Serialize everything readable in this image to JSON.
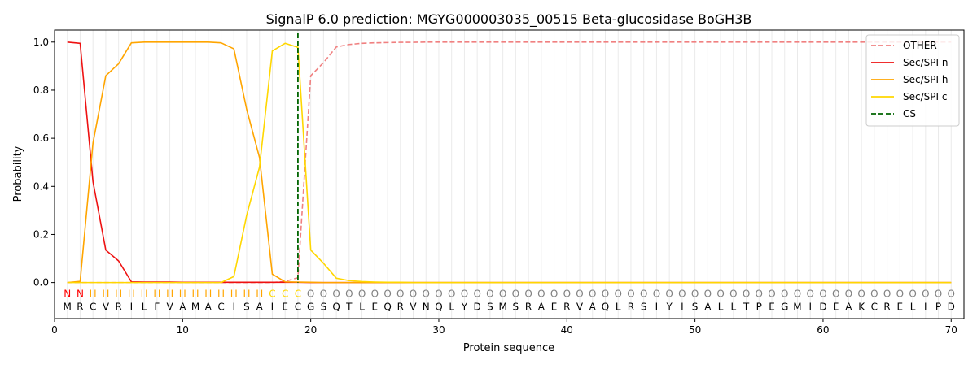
{
  "chart_data": {
    "type": "line",
    "title": "SignalP 6.0 prediction: MGYG000003035_00515 Beta-glucosidase BoGH3B",
    "xlabel": "Protein sequence",
    "ylabel": "Probability",
    "xlim": [
      0,
      71
    ],
    "ylim": [
      -0.15,
      1.05
    ],
    "x_ticks": [
      0,
      10,
      20,
      30,
      40,
      50,
      60,
      70
    ],
    "y_ticks": [
      0.0,
      0.2,
      0.4,
      0.6,
      0.8,
      1.0
    ],
    "x_tick_labels": [
      "0",
      "10",
      "20",
      "30",
      "40",
      "50",
      "60",
      "70"
    ],
    "y_tick_labels": [
      "0.0",
      "0.2",
      "0.4",
      "0.6",
      "0.8",
      "1.0"
    ],
    "grid": "vertical lines at each residue position",
    "legend_position": "top-right",
    "sequence": [
      "M",
      "R",
      "C",
      "V",
      "R",
      "I",
      "L",
      "F",
      "V",
      "A",
      "M",
      "A",
      "C",
      "I",
      "S",
      "A",
      "I",
      "E",
      "C",
      "G",
      "S",
      "Q",
      "T",
      "L",
      "E",
      "Q",
      "R",
      "V",
      "N",
      "Q",
      "L",
      "Y",
      "D",
      "S",
      "M",
      "S",
      "R",
      "A",
      "E",
      "R",
      "V",
      "A",
      "Q",
      "L",
      "R",
      "S",
      "I",
      "Y",
      "I",
      "S",
      "A",
      "L",
      "L",
      "T",
      "P",
      "E",
      "G",
      "M",
      "I",
      "D",
      "E",
      "A",
      "K",
      "C",
      "R",
      "E",
      "L",
      "I",
      "P",
      "D"
    ],
    "labels": [
      "N",
      "N",
      "H",
      "H",
      "H",
      "H",
      "H",
      "H",
      "H",
      "H",
      "H",
      "H",
      "H",
      "H",
      "H",
      "H",
      "C",
      "C",
      "C",
      "O",
      "O",
      "O",
      "O",
      "O",
      "O",
      "O",
      "O",
      "O",
      "O",
      "O",
      "O",
      "O",
      "O",
      "O",
      "O",
      "O",
      "O",
      "O",
      "O",
      "O",
      "O",
      "O",
      "O",
      "O",
      "O",
      "O",
      "O",
      "O",
      "O",
      "O",
      "O",
      "O",
      "O",
      "O",
      "O",
      "O",
      "O",
      "O",
      "O",
      "O",
      "O",
      "O",
      "O",
      "O",
      "O",
      "O",
      "O",
      "O",
      "O",
      "O"
    ],
    "label_colors": {
      "N": "#ff0000",
      "H": "#ffa500",
      "C": "#ffd700",
      "O": "#808080"
    },
    "cleavage_site": 19,
    "series": [
      {
        "name": "OTHER",
        "color": "#f08080",
        "style": "dashed",
        "x": [
          1,
          2,
          3,
          4,
          5,
          6,
          7,
          8,
          9,
          10,
          11,
          12,
          13,
          14,
          15,
          16,
          17,
          18,
          19,
          20,
          21,
          22,
          23,
          24,
          25,
          26,
          27,
          28,
          29,
          30,
          31,
          32,
          33,
          34,
          35,
          36,
          37,
          38,
          39,
          40,
          41,
          42,
          43,
          44,
          45,
          46,
          47,
          48,
          49,
          50,
          51,
          52,
          53,
          54,
          55,
          56,
          57,
          58,
          59,
          60,
          61,
          62,
          63,
          64,
          65,
          66,
          67,
          68,
          69,
          70
        ],
        "values": [
          0,
          0,
          0,
          0,
          0,
          0,
          0,
          0,
          0,
          0,
          0,
          0,
          0,
          0,
          0,
          0,
          0,
          0.005,
          0.02,
          0.86,
          0.915,
          0.98,
          0.99,
          0.995,
          0.997,
          0.998,
          0.999,
          0.999,
          1,
          1,
          1,
          1,
          1,
          1,
          1,
          1,
          1,
          1,
          1,
          1,
          1,
          1,
          1,
          1,
          1,
          1,
          1,
          1,
          1,
          1,
          1,
          1,
          1,
          1,
          1,
          1,
          1,
          1,
          1,
          1,
          1,
          1,
          1,
          1,
          1,
          1,
          1,
          1,
          1,
          1
        ]
      },
      {
        "name": "Sec/SPI n",
        "color": "#ee1111",
        "style": "solid",
        "x": [
          1,
          2,
          3,
          4,
          5,
          6,
          7,
          8,
          9,
          10,
          11,
          12,
          13,
          14,
          15,
          16,
          17,
          18,
          19,
          20,
          21,
          22,
          23,
          24,
          25,
          26,
          27,
          28,
          29,
          30,
          31,
          32,
          33,
          34,
          35,
          36,
          37,
          38,
          39,
          40,
          41,
          42,
          43,
          44,
          45,
          46,
          47,
          48,
          49,
          50,
          51,
          52,
          53,
          54,
          55,
          56,
          57,
          58,
          59,
          60,
          61,
          62,
          63,
          64,
          65,
          66,
          67,
          68,
          69,
          70
        ],
        "values": [
          1.0,
          0.995,
          0.42,
          0.135,
          0.09,
          0.003,
          0.002,
          0.002,
          0.002,
          0.001,
          0.001,
          0.001,
          0.001,
          0.001,
          0.001,
          0.001,
          0.001,
          0.001,
          0.001,
          0,
          0,
          0,
          0,
          0,
          0,
          0,
          0,
          0,
          0,
          0,
          0,
          0,
          0,
          0,
          0,
          0,
          0,
          0,
          0,
          0,
          0,
          0,
          0,
          0,
          0,
          0,
          0,
          0,
          0,
          0,
          0,
          0,
          0,
          0,
          0,
          0,
          0,
          0,
          0,
          0,
          0,
          0,
          0,
          0,
          0,
          0,
          0,
          0,
          0,
          0
        ]
      },
      {
        "name": "Sec/SPI h",
        "color": "#ffa500",
        "style": "solid",
        "x": [
          1,
          2,
          3,
          4,
          5,
          6,
          7,
          8,
          9,
          10,
          11,
          12,
          13,
          14,
          15,
          16,
          17,
          18,
          19,
          20,
          21,
          22,
          23,
          24,
          25,
          26,
          27,
          28,
          29,
          30,
          31,
          32,
          33,
          34,
          35,
          36,
          37,
          38,
          39,
          40,
          41,
          42,
          43,
          44,
          45,
          46,
          47,
          48,
          49,
          50,
          51,
          52,
          53,
          54,
          55,
          56,
          57,
          58,
          59,
          60,
          61,
          62,
          63,
          64,
          65,
          66,
          67,
          68,
          69,
          70
        ],
        "values": [
          0,
          0.005,
          0.58,
          0.86,
          0.91,
          0.997,
          1.0,
          1.0,
          1.0,
          1.0,
          1.0,
          1.0,
          0.997,
          0.972,
          0.72,
          0.52,
          0.035,
          0.003,
          0.002,
          0.001,
          0,
          0,
          0,
          0,
          0,
          0,
          0,
          0,
          0,
          0,
          0,
          0,
          0,
          0,
          0,
          0,
          0,
          0,
          0,
          0,
          0,
          0,
          0,
          0,
          0,
          0,
          0,
          0,
          0,
          0,
          0,
          0,
          0,
          0,
          0,
          0,
          0,
          0,
          0,
          0,
          0,
          0,
          0,
          0,
          0,
          0,
          0,
          0,
          0,
          0
        ]
      },
      {
        "name": "Sec/SPI c",
        "color": "#ffd700",
        "style": "solid",
        "x": [
          1,
          2,
          3,
          4,
          5,
          6,
          7,
          8,
          9,
          10,
          11,
          12,
          13,
          14,
          15,
          16,
          17,
          18,
          19,
          20,
          21,
          22,
          23,
          24,
          25,
          26,
          27,
          28,
          29,
          30,
          31,
          32,
          33,
          34,
          35,
          36,
          37,
          38,
          39,
          40,
          41,
          42,
          43,
          44,
          45,
          46,
          47,
          48,
          49,
          50,
          51,
          52,
          53,
          54,
          55,
          56,
          57,
          58,
          59,
          60,
          61,
          62,
          63,
          64,
          65,
          66,
          67,
          68,
          69,
          70
        ],
        "values": [
          0,
          0,
          0,
          0,
          0,
          0,
          0,
          0,
          0,
          0,
          0,
          0,
          0,
          0.025,
          0.28,
          0.48,
          0.963,
          0.995,
          0.978,
          0.135,
          0.08,
          0.018,
          0.008,
          0.004,
          0.002,
          0.001,
          0.001,
          0,
          0,
          0,
          0,
          0,
          0,
          0,
          0,
          0,
          0,
          0,
          0,
          0,
          0,
          0,
          0,
          0,
          0,
          0,
          0,
          0,
          0,
          0,
          0,
          0,
          0,
          0,
          0,
          0,
          0,
          0,
          0,
          0,
          0,
          0,
          0,
          0,
          0,
          0,
          0,
          0,
          0,
          0
        ]
      }
    ],
    "legend": [
      {
        "name": "OTHER",
        "color": "#f08080",
        "style": "dashed"
      },
      {
        "name": "Sec/SPI n",
        "color": "#ee1111",
        "style": "solid"
      },
      {
        "name": "Sec/SPI h",
        "color": "#ffa500",
        "style": "solid"
      },
      {
        "name": "Sec/SPI c",
        "color": "#ffd700",
        "style": "solid"
      },
      {
        "name": "CS",
        "color": "#006400",
        "style": "dashed"
      }
    ]
  }
}
